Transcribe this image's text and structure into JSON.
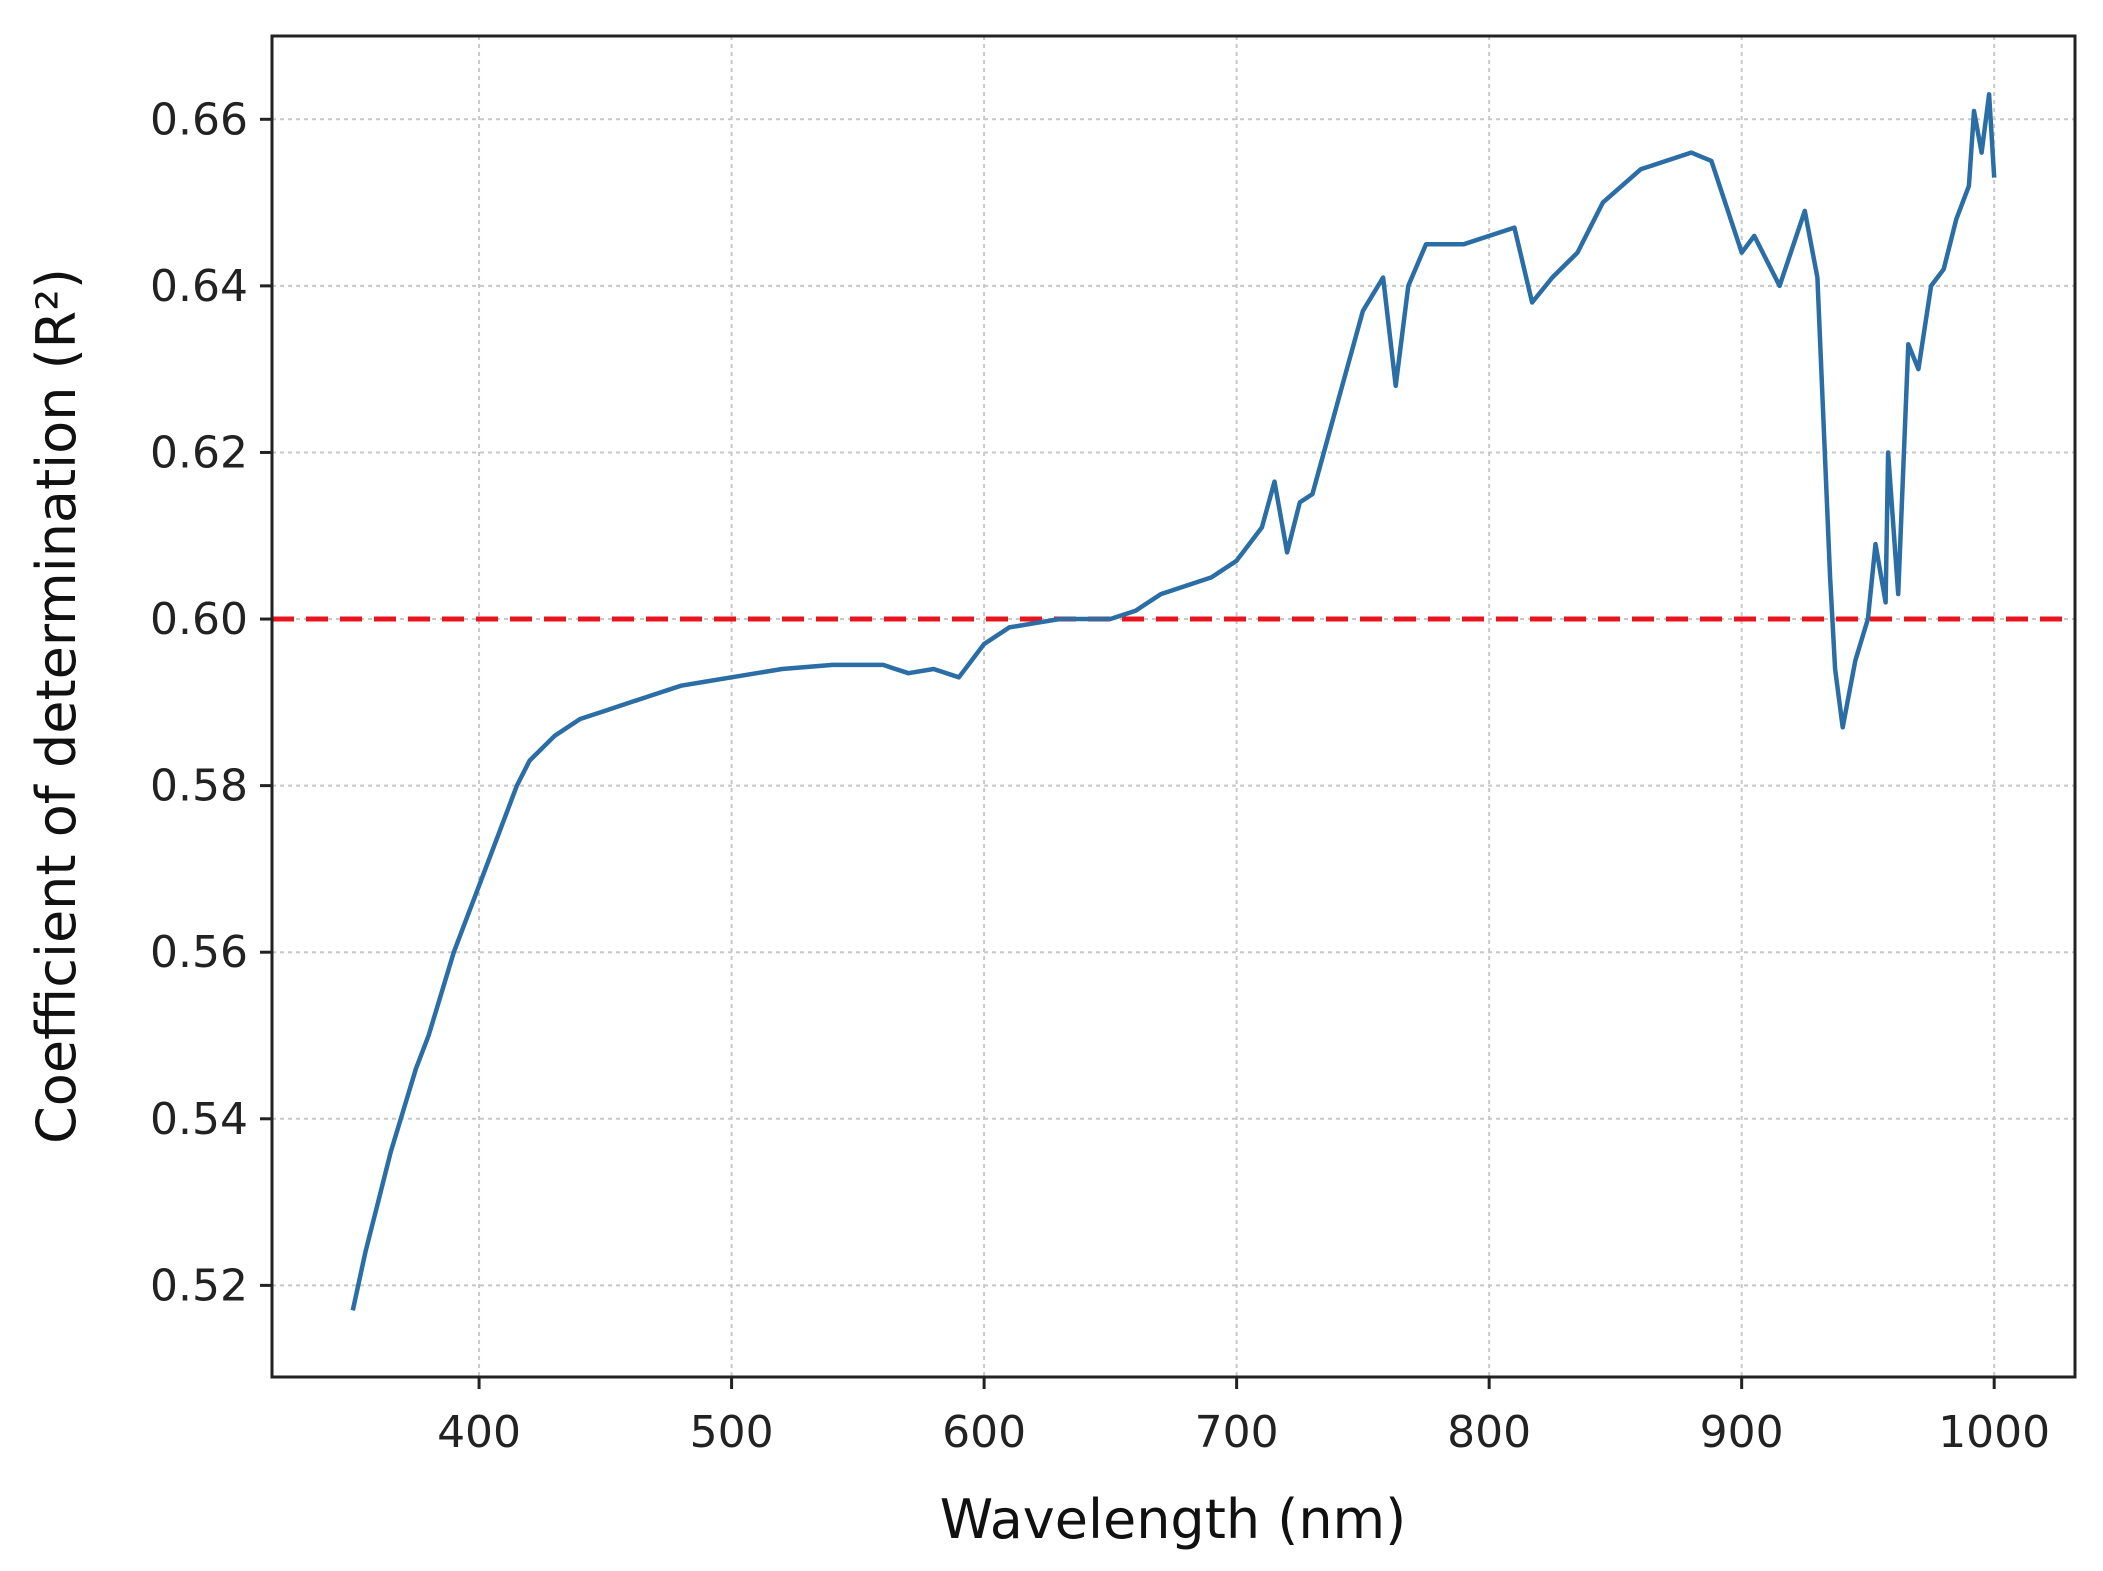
{
  "chart_data": {
    "type": "line",
    "title": "",
    "xlabel": "Wavelength (nm)",
    "ylabel": "Coefficient of determination (R²)",
    "xlim": [
      318,
      1032
    ],
    "ylim": [
      0.509,
      0.67
    ],
    "xticks": [
      400,
      500,
      600,
      700,
      800,
      900,
      1000
    ],
    "xtick_labels": [
      "400",
      "500",
      "600",
      "700",
      "800",
      "900",
      "1000"
    ],
    "yticks": [
      0.52,
      0.54,
      0.56,
      0.58,
      0.6,
      0.62,
      0.64,
      0.66
    ],
    "ytick_labels": [
      "0.52",
      "0.54",
      "0.56",
      "0.58",
      "0.60",
      "0.62",
      "0.64",
      "0.66"
    ],
    "grid": true,
    "series": [
      {
        "color": "#2b6ea6",
        "x": [
          350,
          355,
          360,
          365,
          370,
          375,
          380,
          385,
          390,
          395,
          400,
          405,
          410,
          415,
          420,
          430,
          440,
          450,
          460,
          470,
          480,
          490,
          500,
          520,
          540,
          560,
          570,
          580,
          590,
          600,
          610,
          620,
          630,
          640,
          650,
          660,
          670,
          680,
          690,
          700,
          710,
          715,
          720,
          725,
          730,
          740,
          750,
          758,
          763,
          768,
          775,
          790,
          800,
          810,
          817,
          825,
          835,
          845,
          860,
          880,
          888,
          900,
          905,
          915,
          925,
          930,
          935,
          937,
          940,
          945,
          950,
          953,
          957,
          958,
          962,
          966,
          970,
          975,
          980,
          985,
          990,
          992,
          995,
          998,
          1000
        ],
        "y": [
          0.517,
          0.524,
          0.53,
          0.536,
          0.541,
          0.546,
          0.55,
          0.555,
          0.56,
          0.564,
          0.568,
          0.572,
          0.576,
          0.58,
          0.583,
          0.586,
          0.588,
          0.589,
          0.59,
          0.591,
          0.592,
          0.5925,
          0.593,
          0.594,
          0.5945,
          0.5945,
          0.5935,
          0.594,
          0.593,
          0.597,
          0.599,
          0.5995,
          0.6,
          0.6,
          0.6,
          0.601,
          0.603,
          0.604,
          0.605,
          0.607,
          0.611,
          0.6165,
          0.608,
          0.614,
          0.615,
          0.626,
          0.637,
          0.641,
          0.628,
          0.64,
          0.645,
          0.645,
          0.646,
          0.647,
          0.638,
          0.641,
          0.644,
          0.65,
          0.654,
          0.656,
          0.655,
          0.644,
          0.646,
          0.64,
          0.649,
          0.641,
          0.605,
          0.594,
          0.587,
          0.595,
          0.6,
          0.609,
          0.602,
          0.62,
          0.603,
          0.633,
          0.63,
          0.64,
          0.642,
          0.648,
          0.652,
          0.661,
          0.656,
          0.663,
          0.653
        ]
      }
    ],
    "reference_line": {
      "y": 0.6,
      "color": "#e8141e",
      "style": "dashed"
    }
  }
}
